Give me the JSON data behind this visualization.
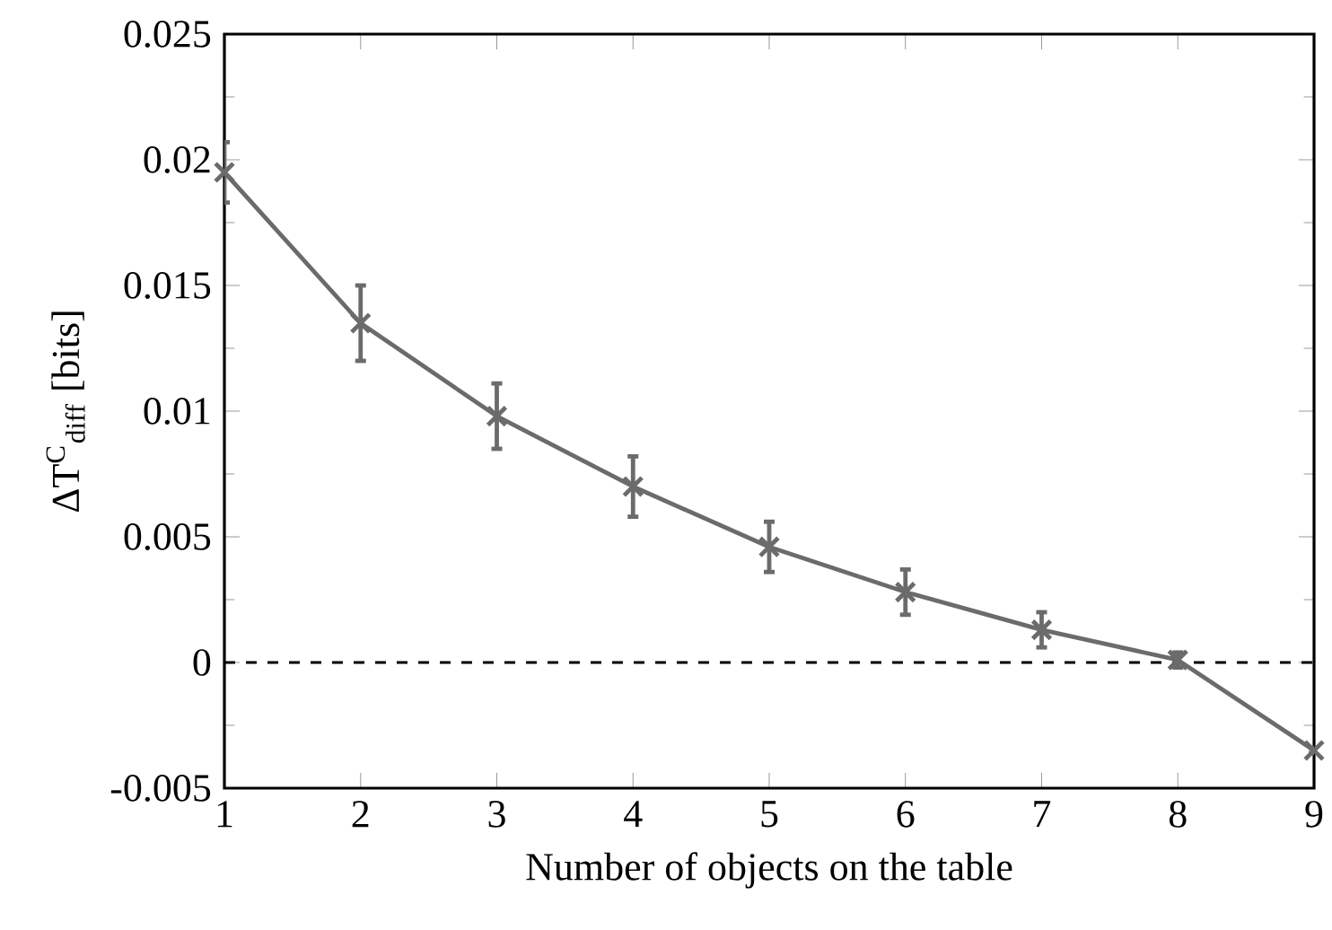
{
  "chart_data": {
    "type": "line",
    "xlabel": "Number of objects on the table",
    "ylabel": "ΔT$^{C}$$_{diff}$ [bits]",
    "x": [
      1,
      2,
      3,
      4,
      5,
      6,
      7,
      8,
      9
    ],
    "series": [
      {
        "color": "#6b6b6b",
        "values": [
          0.0195,
          0.0135,
          0.0098,
          0.007,
          0.0046,
          0.0028,
          0.0013,
          0.0001,
          -0.0035
        ],
        "errors": [
          0.0012,
          0.0015,
          0.0013,
          0.0012,
          0.001,
          0.0009,
          0.0007,
          0.0003,
          0.0001
        ]
      }
    ],
    "xlim": [
      1,
      9
    ],
    "xticks": [
      1,
      2,
      3,
      4,
      5,
      6,
      7,
      8,
      9
    ],
    "ylim": [
      -0.005,
      0.025
    ],
    "yticks": [
      -0.005,
      0,
      0.005,
      0.01,
      0.015,
      0.02,
      0.025
    ],
    "ref_lines": [
      {
        "axis": "y",
        "value": 0,
        "line_style": "dashed",
        "color": "#000000"
      }
    ],
    "marker": "cross",
    "line_style": "solid",
    "grid": false
  }
}
